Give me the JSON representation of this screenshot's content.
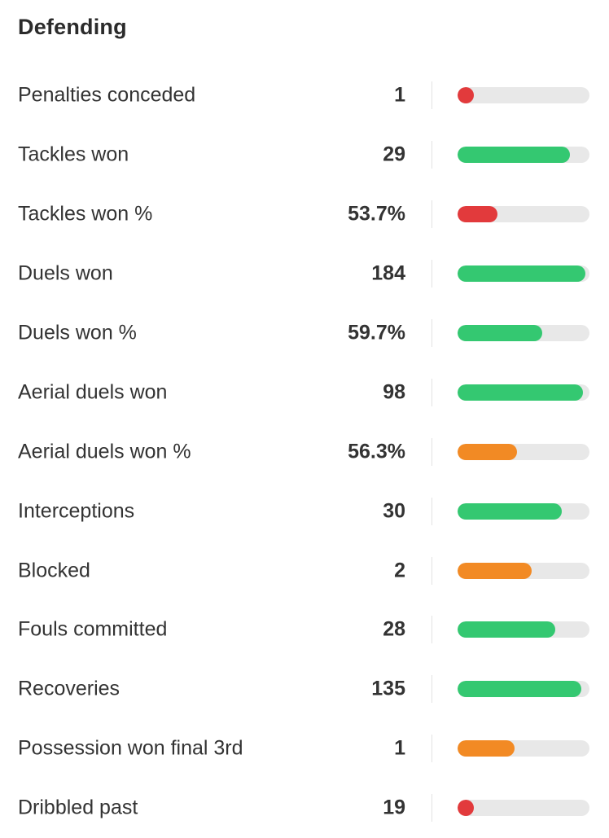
{
  "section": {
    "title": "Defending"
  },
  "colors": {
    "good": "#34c871",
    "average": "#f28a24",
    "poor": "#e23a3c",
    "track": "#e8e8e8"
  },
  "stats": [
    {
      "label": "Penalties conceded",
      "value": "1",
      "bar_fraction": 0.05,
      "rating": "poor"
    },
    {
      "label": "Tackles won",
      "value": "29",
      "bar_fraction": 0.85,
      "rating": "good"
    },
    {
      "label": "Tackles won %",
      "value": "53.7%",
      "bar_fraction": 0.3,
      "rating": "poor"
    },
    {
      "label": "Duels won",
      "value": "184",
      "bar_fraction": 0.97,
      "rating": "good"
    },
    {
      "label": "Duels won %",
      "value": "59.7%",
      "bar_fraction": 0.64,
      "rating": "good"
    },
    {
      "label": "Aerial duels won",
      "value": "98",
      "bar_fraction": 0.95,
      "rating": "good"
    },
    {
      "label": "Aerial duels won %",
      "value": "56.3%",
      "bar_fraction": 0.45,
      "rating": "average"
    },
    {
      "label": "Interceptions",
      "value": "30",
      "bar_fraction": 0.79,
      "rating": "good"
    },
    {
      "label": "Blocked",
      "value": "2",
      "bar_fraction": 0.56,
      "rating": "average"
    },
    {
      "label": "Fouls committed",
      "value": "28",
      "bar_fraction": 0.74,
      "rating": "good"
    },
    {
      "label": "Recoveries",
      "value": "135",
      "bar_fraction": 0.94,
      "rating": "good"
    },
    {
      "label": "Possession won final 3rd",
      "value": "1",
      "bar_fraction": 0.43,
      "rating": "average"
    },
    {
      "label": "Dribbled past",
      "value": "19",
      "bar_fraction": 0.05,
      "rating": "poor"
    }
  ]
}
